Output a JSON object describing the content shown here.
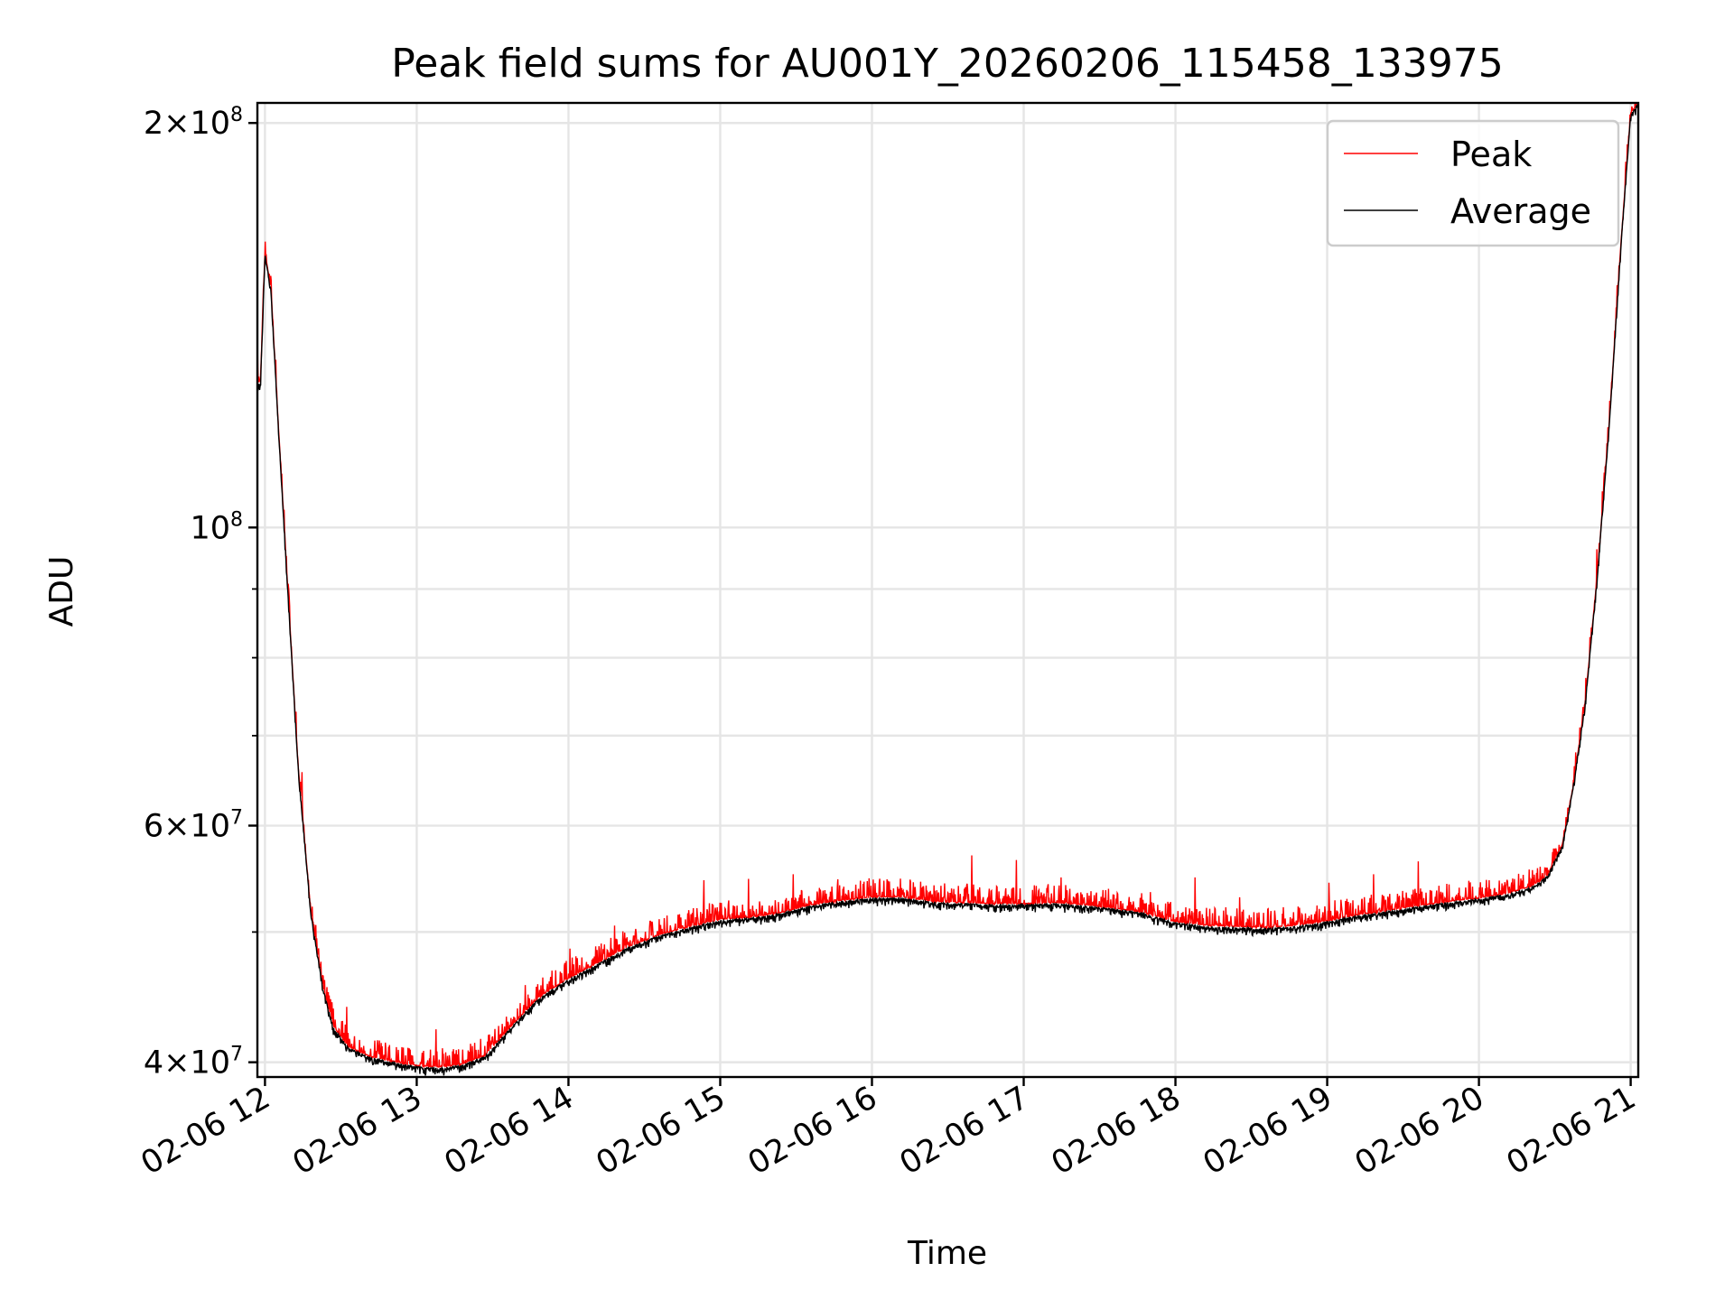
{
  "chart_data": {
    "type": "line",
    "title": "Peak field sums for AU001Y_20260206_115458_133975",
    "xlabel": "Time",
    "ylabel": "ADU",
    "yscale": "log",
    "ylim": [
      39000000,
      207000000
    ],
    "xlim_hours": [
      11.95,
      21.05
    ],
    "grid": true,
    "legend_position": "upper right",
    "x_ticks": [
      {
        "hour": 12,
        "label": "02-06 12"
      },
      {
        "hour": 13,
        "label": "02-06 13"
      },
      {
        "hour": 14,
        "label": "02-06 14"
      },
      {
        "hour": 15,
        "label": "02-06 15"
      },
      {
        "hour": 16,
        "label": "02-06 16"
      },
      {
        "hour": 17,
        "label": "02-06 17"
      },
      {
        "hour": 18,
        "label": "02-06 18"
      },
      {
        "hour": 19,
        "label": "02-06 19"
      },
      {
        "hour": 20,
        "label": "02-06 20"
      },
      {
        "hour": 21,
        "label": "02-06 21"
      }
    ],
    "y_major_ticks": [
      {
        "value": 40000000,
        "mantissa": "4",
        "times": "×",
        "base": "10",
        "exponent": "7"
      },
      {
        "value": 60000000,
        "mantissa": "6",
        "times": "×",
        "base": "10",
        "exponent": "7"
      },
      {
        "value": 100000000,
        "mantissa": "",
        "times": "",
        "base": "10",
        "exponent": "8"
      },
      {
        "value": 200000000,
        "mantissa": "2",
        "times": "×",
        "base": "10",
        "exponent": "8"
      }
    ],
    "y_minor_ticks": [
      50000000,
      70000000,
      80000000,
      90000000
    ],
    "series": [
      {
        "name": "Peak",
        "color": "#ff0000",
        "spike_amplitude": 0.035,
        "spike_density": 0.55
      },
      {
        "name": "Average",
        "color": "#000000",
        "dip_amplitude": 0.015
      }
    ],
    "average_curve": {
      "hours": [
        11.95,
        11.97,
        12.0,
        12.04,
        12.09,
        12.15,
        12.22,
        12.3,
        12.38,
        12.45,
        12.55,
        12.7,
        12.85,
        13.0,
        13.15,
        13.3,
        13.45,
        13.6,
        13.8,
        14.0,
        14.2,
        14.4,
        14.6,
        14.8,
        15.0,
        15.2,
        15.4,
        15.6,
        15.8,
        16.0,
        16.2,
        16.4,
        16.6,
        16.8,
        17.0,
        17.2,
        17.4,
        17.6,
        17.8,
        18.0,
        18.2,
        18.4,
        18.6,
        18.8,
        19.0,
        19.2,
        19.4,
        19.6,
        19.8,
        20.0,
        20.2,
        20.35,
        20.45,
        20.55,
        20.62,
        20.7,
        20.78,
        20.86,
        20.94,
        21.0,
        21.05
      ],
      "values": [
        128000000,
        128000000,
        160000000,
        150000000,
        118000000,
        90000000,
        66000000,
        52000000,
        45500000,
        42500000,
        41000000,
        40300000,
        40000000,
        39700000,
        39600000,
        39800000,
        40400000,
        42200000,
        44600000,
        46100000,
        47400000,
        48700000,
        49700000,
        50400000,
        51000000,
        51200000,
        51600000,
        52300000,
        52700000,
        53000000,
        53000000,
        52600000,
        52500000,
        52400000,
        52400000,
        52500000,
        52300000,
        52000000,
        51600000,
        50800000,
        50500000,
        50400000,
        50300000,
        50500000,
        50900000,
        51400000,
        51800000,
        52200000,
        52600000,
        52900000,
        53400000,
        54000000,
        55000000,
        58000000,
        64000000,
        74000000,
        92000000,
        120000000,
        165000000,
        203000000,
        207000000
      ]
    },
    "legend": [
      {
        "name": "Peak",
        "color": "#ff0000"
      },
      {
        "name": "Average",
        "color": "#000000"
      }
    ]
  }
}
